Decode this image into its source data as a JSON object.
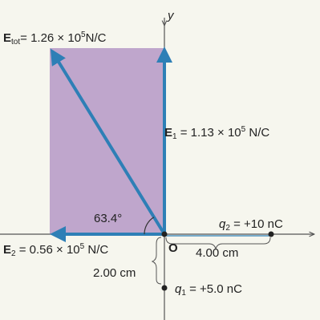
{
  "colors": {
    "background": "#f6f6ee",
    "rectangle_fill": "#bfa6cc",
    "vector": "#2e7fb6",
    "axis": "#555555",
    "charge": "#222222"
  },
  "labels": {
    "y_axis": "y",
    "e_tot_symbol": "E",
    "e_tot_sub": "tot",
    "e_tot_value": "= 1.26 × 10",
    "e_tot_exp": "5",
    "e_tot_unit": "N/C",
    "e1_symbol": "E",
    "e1_sub": "1",
    "e1_value": " = 1.13 × 10",
    "e1_exp": "5",
    "e1_unit": " N/C",
    "e2_symbol": "E",
    "e2_sub": "2",
    "e2_value": " = 0.56 × 10",
    "e2_exp": "5",
    "e2_unit": " N/C",
    "angle": "63.4°",
    "q2_symbol": "q",
    "q2_sub": "2",
    "q2_value": " = +10 nC",
    "q1_symbol": "q",
    "q1_sub": "1",
    "q1_value": " = +5.0 nC",
    "origin": "O",
    "dist_x": "4.00 cm",
    "dist_y": "2.00 cm"
  }
}
